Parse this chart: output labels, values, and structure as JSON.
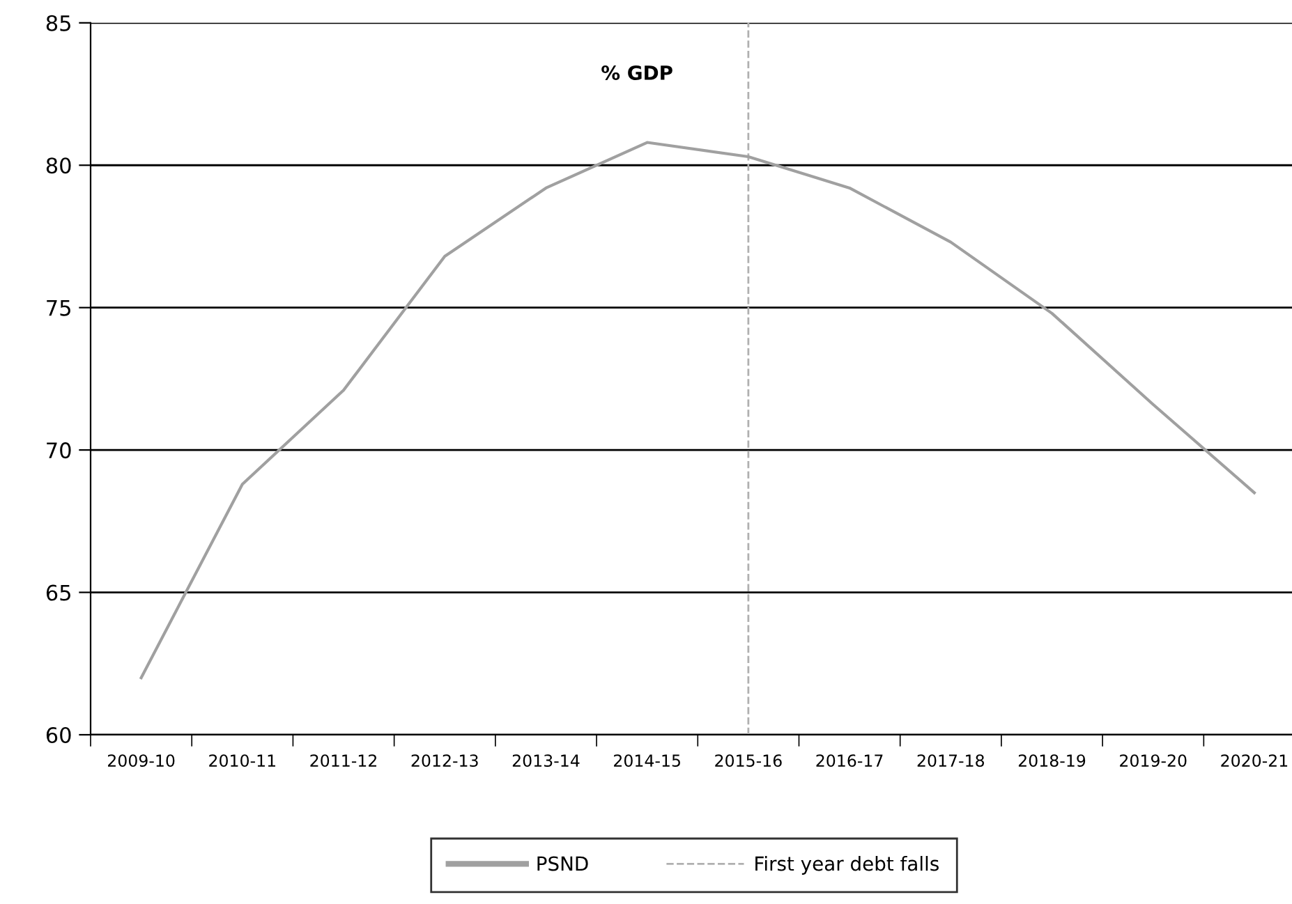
{
  "chart_data": {
    "type": "line",
    "title": "% GDP",
    "categories": [
      "2009-10",
      "2010-11",
      "2011-12",
      "2012-13",
      "2013-14",
      "2014-15",
      "2015-16",
      "2016-17",
      "2017-18",
      "2018-19",
      "2019-20",
      "2020-21"
    ],
    "series": [
      {
        "name": "PSND",
        "color": "#a0a0a0",
        "values": [
          62.0,
          68.8,
          72.1,
          76.8,
          79.2,
          80.8,
          80.3,
          79.2,
          77.3,
          74.8,
          71.6,
          68.5
        ]
      }
    ],
    "ref_lines": [
      {
        "axis": "x",
        "value": "2015-16",
        "label": "First year debt falls",
        "color": "#b0b0b0",
        "line_style": "dashed"
      }
    ],
    "ylim": [
      60,
      85
    ],
    "yticks": [
      60,
      65,
      70,
      75,
      80,
      85
    ],
    "grid": "y",
    "legend": "bottom",
    "marker": "none",
    "line_style": "solid"
  }
}
